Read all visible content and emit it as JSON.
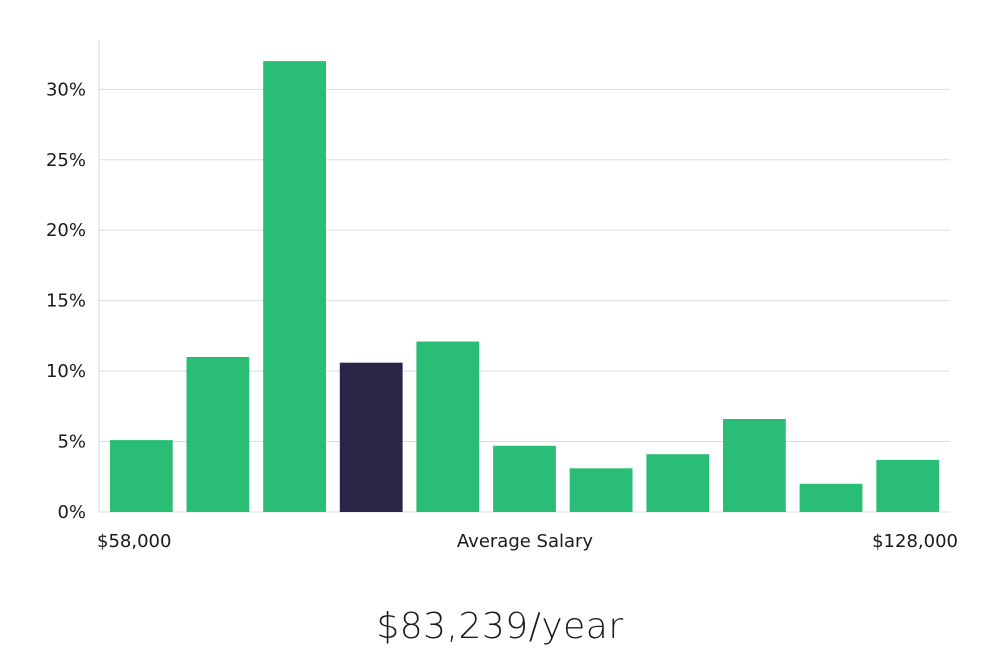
{
  "chart_data": {
    "type": "bar",
    "values": [
      5.1,
      11.0,
      32.0,
      10.6,
      12.1,
      4.7,
      3.1,
      4.1,
      6.6,
      2.0,
      3.7
    ],
    "highlight_index": 3,
    "ylim": [
      0,
      33.5
    ],
    "yticks": [
      0,
      5,
      10,
      15,
      20,
      25,
      30
    ],
    "ytick_labels": [
      "0%",
      "5%",
      "10%",
      "15%",
      "20%",
      "25%",
      "30%"
    ],
    "x_start_label": "$58,000",
    "x_end_label": "$128,000",
    "xlabel": "Average Salary",
    "grid": true,
    "colors": {
      "bar": "#2abd76",
      "highlight": "#2a2546",
      "grid": "#dddddd",
      "axis": "#d8d8d8"
    }
  },
  "summary": {
    "salary_text": "$83,239/year"
  }
}
